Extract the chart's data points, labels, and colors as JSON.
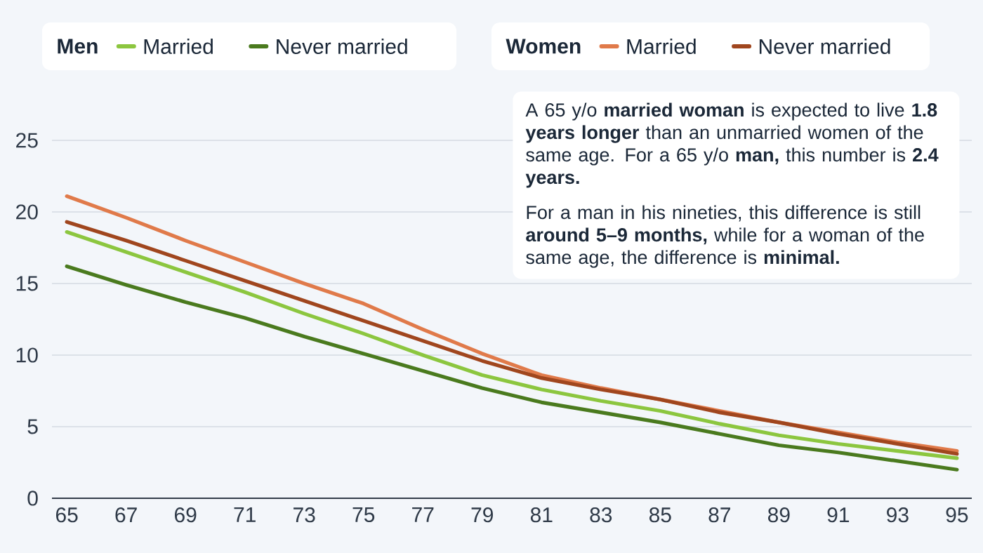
{
  "chart_data": {
    "type": "line",
    "x": [
      65,
      67,
      69,
      71,
      73,
      75,
      77,
      79,
      81,
      83,
      85,
      87,
      89,
      91,
      93,
      95
    ],
    "series": [
      {
        "name": "Married",
        "color": "#8cc63f",
        "values": [
          18.6,
          17.2,
          15.8,
          14.4,
          12.9,
          11.5,
          10.0,
          8.6,
          7.6,
          6.8,
          6.1,
          5.2,
          4.4,
          3.8,
          3.3,
          2.8
        ]
      },
      {
        "name": "Never married",
        "color": "#4a7a1e",
        "values": [
          16.2,
          14.9,
          13.7,
          12.6,
          11.3,
          10.1,
          8.9,
          7.7,
          6.7,
          6.0,
          5.3,
          4.5,
          3.7,
          3.2,
          2.6,
          2.0
        ]
      },
      {
        "name": "Married",
        "color": "#e07a4a",
        "values": [
          21.1,
          19.6,
          18.0,
          16.5,
          15.0,
          13.6,
          11.8,
          10.1,
          8.6,
          7.7,
          6.9,
          6.1,
          5.3,
          4.6,
          3.9,
          3.3
        ]
      },
      {
        "name": "Never married",
        "color": "#a0461e",
        "values": [
          19.3,
          18.0,
          16.6,
          15.2,
          13.8,
          12.4,
          11.0,
          9.6,
          8.4,
          7.6,
          6.9,
          6.0,
          5.3,
          4.5,
          3.8,
          3.1
        ]
      }
    ],
    "xlim": [
      64.5,
      95.5
    ],
    "ylim": [
      0,
      25
    ],
    "xticks": [
      65,
      67,
      69,
      71,
      73,
      75,
      77,
      79,
      81,
      83,
      85,
      87,
      89,
      91,
      93,
      95
    ],
    "yticks": [
      0,
      5,
      10,
      15,
      20,
      25
    ],
    "grid": "y",
    "legend": "top",
    "line_style": "solid",
    "annotations": [
      "Men",
      "Women",
      "A 65 y/o **married woman** is expected to live **1.8 years longer** than an unmarried women of the same age. For a 65 y/o **man,** this number is **2.4 years.**",
      "For a man in his nineties, this difference is still **around 5–9 months,** while for a woman of the same age, the difference is **minimal.**"
    ]
  }
}
